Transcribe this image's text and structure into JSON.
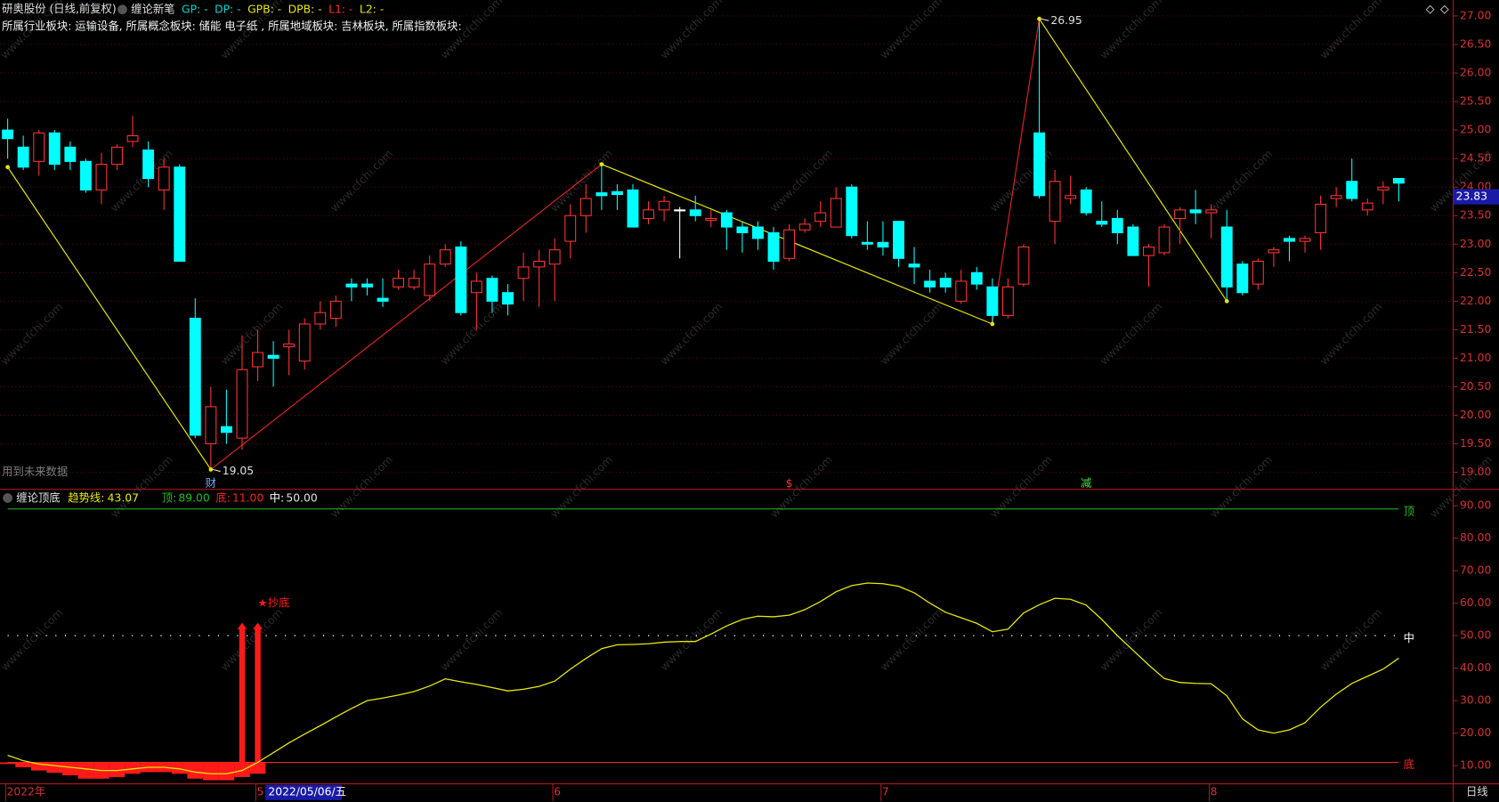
{
  "watermark": "www.cfchi.com",
  "status": "日线",
  "cursor_date": "2022/05/06/五",
  "chart_data": [
    {
      "type": "candlestick",
      "title": "研奥股份 (日线,前复权)",
      "indicator": "缠论新笔",
      "fields": [
        {
          "label": "GP: -",
          "color": "#00d8d8"
        },
        {
          "label": "DP: -",
          "color": "#00d8d8"
        },
        {
          "label": "GPB: -",
          "color": "#e8e800"
        },
        {
          "label": "DPB: -",
          "color": "#e8e800"
        },
        {
          "label": "L1: -",
          "color": "#ff3030"
        },
        {
          "label": "L2: -",
          "color": "#e8e800"
        }
      ],
      "info": "所属行业板块: 运输设备, 所属概念板块: 储能 电子纸 , 所属地域板块: 吉林板块, 所属指数板块:",
      "note": "用到未来数据",
      "categories": [
        "2022年",
        null,
        null,
        null,
        null,
        null,
        null,
        null,
        null,
        null,
        null,
        null,
        null,
        null,
        null,
        null,
        "5",
        null,
        null,
        null,
        null,
        null,
        null,
        null,
        null,
        null,
        null,
        null,
        null,
        null,
        null,
        null,
        null,
        null,
        null,
        "6",
        null,
        null,
        null,
        null,
        null,
        null,
        null,
        null,
        null,
        null,
        null,
        null,
        null,
        null,
        null,
        null,
        null,
        null,
        null,
        null,
        "7",
        null,
        null,
        null,
        null,
        null,
        null,
        null,
        null,
        null,
        null,
        null,
        null,
        null,
        null,
        null,
        null,
        null,
        null,
        null,
        null,
        "8",
        null,
        null,
        null,
        null,
        null,
        null,
        null,
        null,
        null,
        null,
        null,
        null
      ],
      "open": [
        25.0,
        24.7,
        24.45,
        24.95,
        24.7,
        24.45,
        23.95,
        24.4,
        24.8,
        24.65,
        23.95,
        24.35,
        21.7,
        19.5,
        19.8,
        19.6,
        20.85,
        21.05,
        21.2,
        20.95,
        21.6,
        21.7,
        22.3,
        22.3,
        22.05,
        22.25,
        22.25,
        22.1,
        22.65,
        22.95,
        22.15,
        22.4,
        22.15,
        22.4,
        22.6,
        22.65,
        23.05,
        23.5,
        23.9,
        23.92,
        23.95,
        23.45,
        23.6,
        23.6,
        23.6,
        23.42,
        23.55,
        23.3,
        23.3,
        23.2,
        22.75,
        23.25,
        23.4,
        23.3,
        24.0,
        23.03,
        23.03,
        23.4,
        22.65,
        22.35,
        22.4,
        22.0,
        22.5,
        22.25,
        21.75,
        22.3,
        24.95,
        23.4,
        23.8,
        23.95,
        23.4,
        23.45,
        23.3,
        22.8,
        22.85,
        23.45,
        23.6,
        23.55,
        23.3,
        22.65,
        22.3,
        22.85,
        23.1,
        23.05,
        23.2,
        23.8,
        24.1,
        23.6,
        23.95,
        24.15
      ],
      "high": [
        25.2,
        24.9,
        25.0,
        25.0,
        24.8,
        24.5,
        24.6,
        24.75,
        25.25,
        24.8,
        24.5,
        24.4,
        22.05,
        20.5,
        20.45,
        21.4,
        21.5,
        21.3,
        21.5,
        21.7,
        22.0,
        22.1,
        22.4,
        22.4,
        22.4,
        22.55,
        22.55,
        22.8,
        23.0,
        23.05,
        22.5,
        22.45,
        22.3,
        22.85,
        22.9,
        23.1,
        23.7,
        24.05,
        24.4,
        24.05,
        24.05,
        23.75,
        23.85,
        23.65,
        23.85,
        23.6,
        23.6,
        23.4,
        23.4,
        23.3,
        23.35,
        23.45,
        23.75,
        24.0,
        24.05,
        23.4,
        23.4,
        23.4,
        22.95,
        22.55,
        22.5,
        22.55,
        22.6,
        22.4,
        22.4,
        23.0,
        26.95,
        24.3,
        24.2,
        24.0,
        23.75,
        23.6,
        23.35,
        23.0,
        23.35,
        23.65,
        23.95,
        23.7,
        23.6,
        22.7,
        22.75,
        22.95,
        23.15,
        23.15,
        23.85,
        24.0,
        24.5,
        23.8,
        24.1,
        24.15
      ],
      "low": [
        24.5,
        24.3,
        24.2,
        24.3,
        24.3,
        23.9,
        23.7,
        24.3,
        24.7,
        24.0,
        23.6,
        22.7,
        19.6,
        19.05,
        19.5,
        19.4,
        20.6,
        20.5,
        20.7,
        20.8,
        21.5,
        21.55,
        22.0,
        22.1,
        21.9,
        22.2,
        22.2,
        22.0,
        22.6,
        21.75,
        21.5,
        21.8,
        21.75,
        22.0,
        21.9,
        22.0,
        22.75,
        23.2,
        23.6,
        23.6,
        23.3,
        23.35,
        23.4,
        22.75,
        23.4,
        23.3,
        22.9,
        22.85,
        22.9,
        22.55,
        22.7,
        23.2,
        23.3,
        23.3,
        23.1,
        22.9,
        22.8,
        22.6,
        22.3,
        22.15,
        22.15,
        21.95,
        22.2,
        21.6,
        21.7,
        22.25,
        23.8,
        23.0,
        23.7,
        23.5,
        23.3,
        23.0,
        22.8,
        22.25,
        22.8,
        23.0,
        23.35,
        23.1,
        22.0,
        22.1,
        22.2,
        22.6,
        22.7,
        22.85,
        22.9,
        23.65,
        23.75,
        23.5,
        23.7,
        23.75
      ],
      "close": [
        24.85,
        24.35,
        24.95,
        24.4,
        24.45,
        23.95,
        24.4,
        24.7,
        24.9,
        24.15,
        24.35,
        22.7,
        19.65,
        20.15,
        19.7,
        20.8,
        21.1,
        21.0,
        21.25,
        21.6,
        21.8,
        22.0,
        22.25,
        22.25,
        22.0,
        22.4,
        22.4,
        22.65,
        22.9,
        21.8,
        22.35,
        22.0,
        21.95,
        22.6,
        22.7,
        22.9,
        23.5,
        23.8,
        23.85,
        23.87,
        23.3,
        23.6,
        23.75,
        23.6,
        23.5,
        23.45,
        23.3,
        23.2,
        23.1,
        22.7,
        23.25,
        23.35,
        23.55,
        23.8,
        23.15,
        23.0,
        22.95,
        22.75,
        22.6,
        22.25,
        22.25,
        22.35,
        22.3,
        21.75,
        22.25,
        22.95,
        23.85,
        24.1,
        23.85,
        23.55,
        23.35,
        23.2,
        22.8,
        22.95,
        23.3,
        23.6,
        23.55,
        23.6,
        22.25,
        22.15,
        22.7,
        22.9,
        23.05,
        23.1,
        23.7,
        23.85,
        23.8,
        23.72,
        24.0,
        24.07
      ],
      "up_color": "#ff3232",
      "down_color": "#00ffff",
      "flat_color": "#ffffff",
      "zigzag": {
        "x": [
          0,
          13,
          38,
          63,
          66,
          78
        ],
        "values": [
          24.35,
          19.05,
          24.4,
          21.6,
          26.95,
          22.0
        ],
        "up_color": "#e02020",
        "down_color": "#e8e800",
        "labeled": [
          1,
          4
        ]
      },
      "markers": [
        {
          "x": 13,
          "label": "财",
          "color": "#6aa8ff"
        },
        {
          "x": 50,
          "label": "$",
          "color": "#ff3030"
        },
        {
          "x": 69,
          "label": "减",
          "color": "#40e040"
        }
      ],
      "last_price": 23.83,
      "ylim": [
        18.7,
        27.28
      ],
      "yticks": [
        {
          "value": 19,
          "label": "19.00"
        },
        {
          "value": 19.5,
          "label": "19.50"
        },
        {
          "value": 20,
          "label": "20.00"
        },
        {
          "value": 20.5,
          "label": "20.50"
        },
        {
          "value": 21,
          "label": "21.00"
        },
        {
          "value": 21.5,
          "label": "21.50"
        },
        {
          "value": 22,
          "label": "22.00"
        },
        {
          "value": 22.5,
          "label": "22.50"
        },
        {
          "value": 23,
          "label": "23.00"
        },
        {
          "value": 23.5,
          "label": "23.50"
        },
        {
          "value": 24,
          "label": "24.00"
        },
        {
          "value": 24.5,
          "label": "24.50"
        },
        {
          "value": 25,
          "label": "25.00"
        },
        {
          "value": 25.5,
          "label": "25.50"
        },
        {
          "value": 26,
          "label": "26.00"
        },
        {
          "value": 26.5,
          "label": "26.50"
        },
        {
          "value": 27,
          "label": "27.00"
        }
      ],
      "grid": true
    },
    {
      "type": "line",
      "title": "缠论顶底",
      "series": [
        {
          "name": "趋势线:",
          "color": "#e8e800",
          "values": [
            13.2,
            11.5,
            10.5,
            10,
            9.5,
            9,
            8.5,
            8.5,
            9,
            9.5,
            9.5,
            9,
            8,
            7.5,
            7.5,
            8.5,
            11,
            14,
            17,
            19.7,
            22.3,
            25,
            27.6,
            30,
            30.8,
            31.7,
            32.8,
            34.5,
            36.7,
            35.8,
            35,
            34,
            33,
            33.5,
            34.4,
            36,
            39.7,
            43,
            46,
            47.2,
            47.3,
            47.5,
            48,
            48.2,
            48.2,
            50.5,
            53,
            55,
            56,
            55.8,
            56.3,
            58,
            60.5,
            63.5,
            65.4,
            66.2,
            66,
            65.2,
            63.2,
            60,
            57.2,
            55.5,
            53.8,
            51.2,
            52,
            57,
            59.5,
            61.5,
            61.2,
            59.4,
            55,
            50,
            45.5,
            41,
            36.8,
            35.6,
            35.3,
            35.2,
            31.5,
            24.4,
            21,
            20,
            21,
            23.2,
            28,
            32,
            35.3,
            37.5,
            39.7,
            43.07
          ]
        }
      ],
      "levels": [
        {
          "name": "顶",
          "header": "顶:",
          "value": 89,
          "label": "89.00",
          "color": "#20c020"
        },
        {
          "name": "底",
          "header": "底:",
          "value": 11,
          "label": "11.00",
          "color": "#ff2020"
        },
        {
          "name": "中",
          "header": "中:",
          "value": 50,
          "label": "50.00",
          "color": "#ffffff"
        }
      ],
      "bottom_values": [
        10.5,
        9.5,
        8.5,
        7.8,
        7,
        6,
        6,
        6.5,
        7.5,
        8,
        8,
        7.5,
        6,
        5.5,
        5.5,
        6.5,
        7.5,
        null,
        null,
        null,
        null,
        null,
        null,
        null,
        null,
        null,
        null,
        null,
        null,
        null,
        null,
        null,
        null,
        null,
        null,
        null,
        null,
        null,
        null,
        null,
        null,
        null,
        null,
        null,
        null,
        null,
        null,
        null,
        null,
        null,
        null,
        null,
        null,
        null,
        null,
        null,
        null,
        null,
        null,
        null,
        null,
        null,
        null,
        null,
        null,
        null,
        null,
        null,
        null,
        null,
        null,
        null,
        null,
        null,
        null,
        null,
        null,
        null,
        null,
        null,
        null,
        null,
        null,
        null,
        null,
        null,
        null,
        null,
        null,
        null
      ],
      "arrow_values": [
        null,
        null,
        null,
        null,
        null,
        null,
        null,
        null,
        null,
        null,
        null,
        null,
        null,
        null,
        null,
        54,
        54,
        null,
        null,
        null,
        null,
        null,
        null,
        null,
        null,
        null,
        null,
        null,
        null,
        null,
        null,
        null,
        null,
        null,
        null,
        null,
        null,
        null,
        null,
        null,
        null,
        null,
        null,
        null,
        null,
        null,
        null,
        null,
        null,
        null,
        null,
        null,
        null,
        null,
        null,
        null,
        null,
        null,
        null,
        null,
        null,
        null,
        null,
        null,
        null,
        null,
        null,
        null,
        null,
        null,
        null,
        null,
        null,
        null,
        null,
        null,
        null,
        null,
        null,
        null,
        null,
        null,
        null,
        null,
        null,
        null,
        null,
        null,
        null,
        null
      ],
      "arrow_label": "★抄底",
      "signal_color": "#ff1a1a",
      "ylim": [
        4.4,
        95
      ],
      "yticks": [
        {
          "value": 10,
          "label": "10.00"
        },
        {
          "value": 20,
          "label": "20.00"
        },
        {
          "value": 30,
          "label": "30.00"
        },
        {
          "value": 40,
          "label": "40.00"
        },
        {
          "value": 50,
          "label": "50.00"
        },
        {
          "value": 60,
          "label": "60.00"
        },
        {
          "value": 70,
          "label": "70.00"
        },
        {
          "value": 80,
          "label": "80.00"
        },
        {
          "value": 90,
          "label": "90.00"
        }
      ],
      "grid": true
    }
  ]
}
